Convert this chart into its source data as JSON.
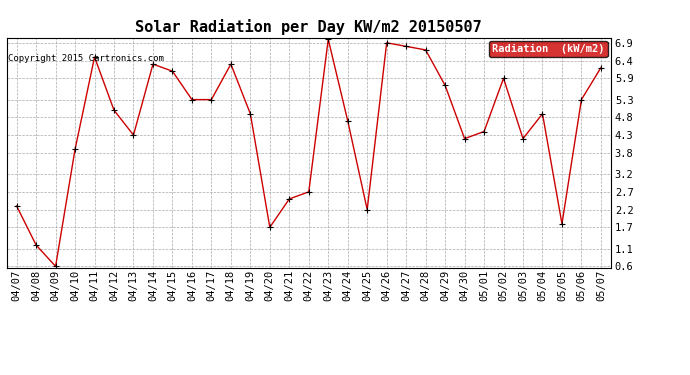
{
  "title": "Solar Radiation per Day KW/m2 20150507",
  "copyright": "Copyright 2015 Cartronics.com",
  "legend_label": "Radiation  (kW/m2)",
  "x_labels": [
    "04/07",
    "04/08",
    "04/09",
    "04/10",
    "04/11",
    "04/12",
    "04/13",
    "04/14",
    "04/15",
    "04/16",
    "04/17",
    "04/18",
    "04/19",
    "04/20",
    "04/21",
    "04/22",
    "04/23",
    "04/24",
    "04/25",
    "04/26",
    "04/27",
    "04/28",
    "04/29",
    "04/30",
    "05/01",
    "05/02",
    "05/03",
    "05/04",
    "05/05",
    "05/06",
    "05/07"
  ],
  "y_values": [
    2.3,
    1.2,
    0.6,
    3.9,
    6.5,
    5.0,
    4.3,
    6.3,
    6.1,
    5.3,
    5.3,
    6.3,
    4.9,
    1.7,
    2.5,
    2.7,
    7.0,
    4.7,
    2.2,
    6.9,
    6.8,
    6.7,
    5.7,
    4.2,
    4.4,
    5.9,
    4.2,
    4.9,
    1.8,
    5.3,
    6.2
  ],
  "y_ticks": [
    0.6,
    1.1,
    1.7,
    2.2,
    2.7,
    3.2,
    3.8,
    4.3,
    4.8,
    5.3,
    5.9,
    6.4,
    6.9
  ],
  "y_min": 0.55,
  "y_max": 7.05,
  "line_color": "#cc0000",
  "marker_color": "#000000",
  "bg_color": "#ffffff",
  "grid_color": "#aaaaaa",
  "legend_bg": "#cc0000",
  "legend_text_color": "#ffffff",
  "title_fontsize": 11,
  "copyright_fontsize": 6.5,
  "tick_fontsize": 7.5,
  "legend_fontsize": 7.5
}
